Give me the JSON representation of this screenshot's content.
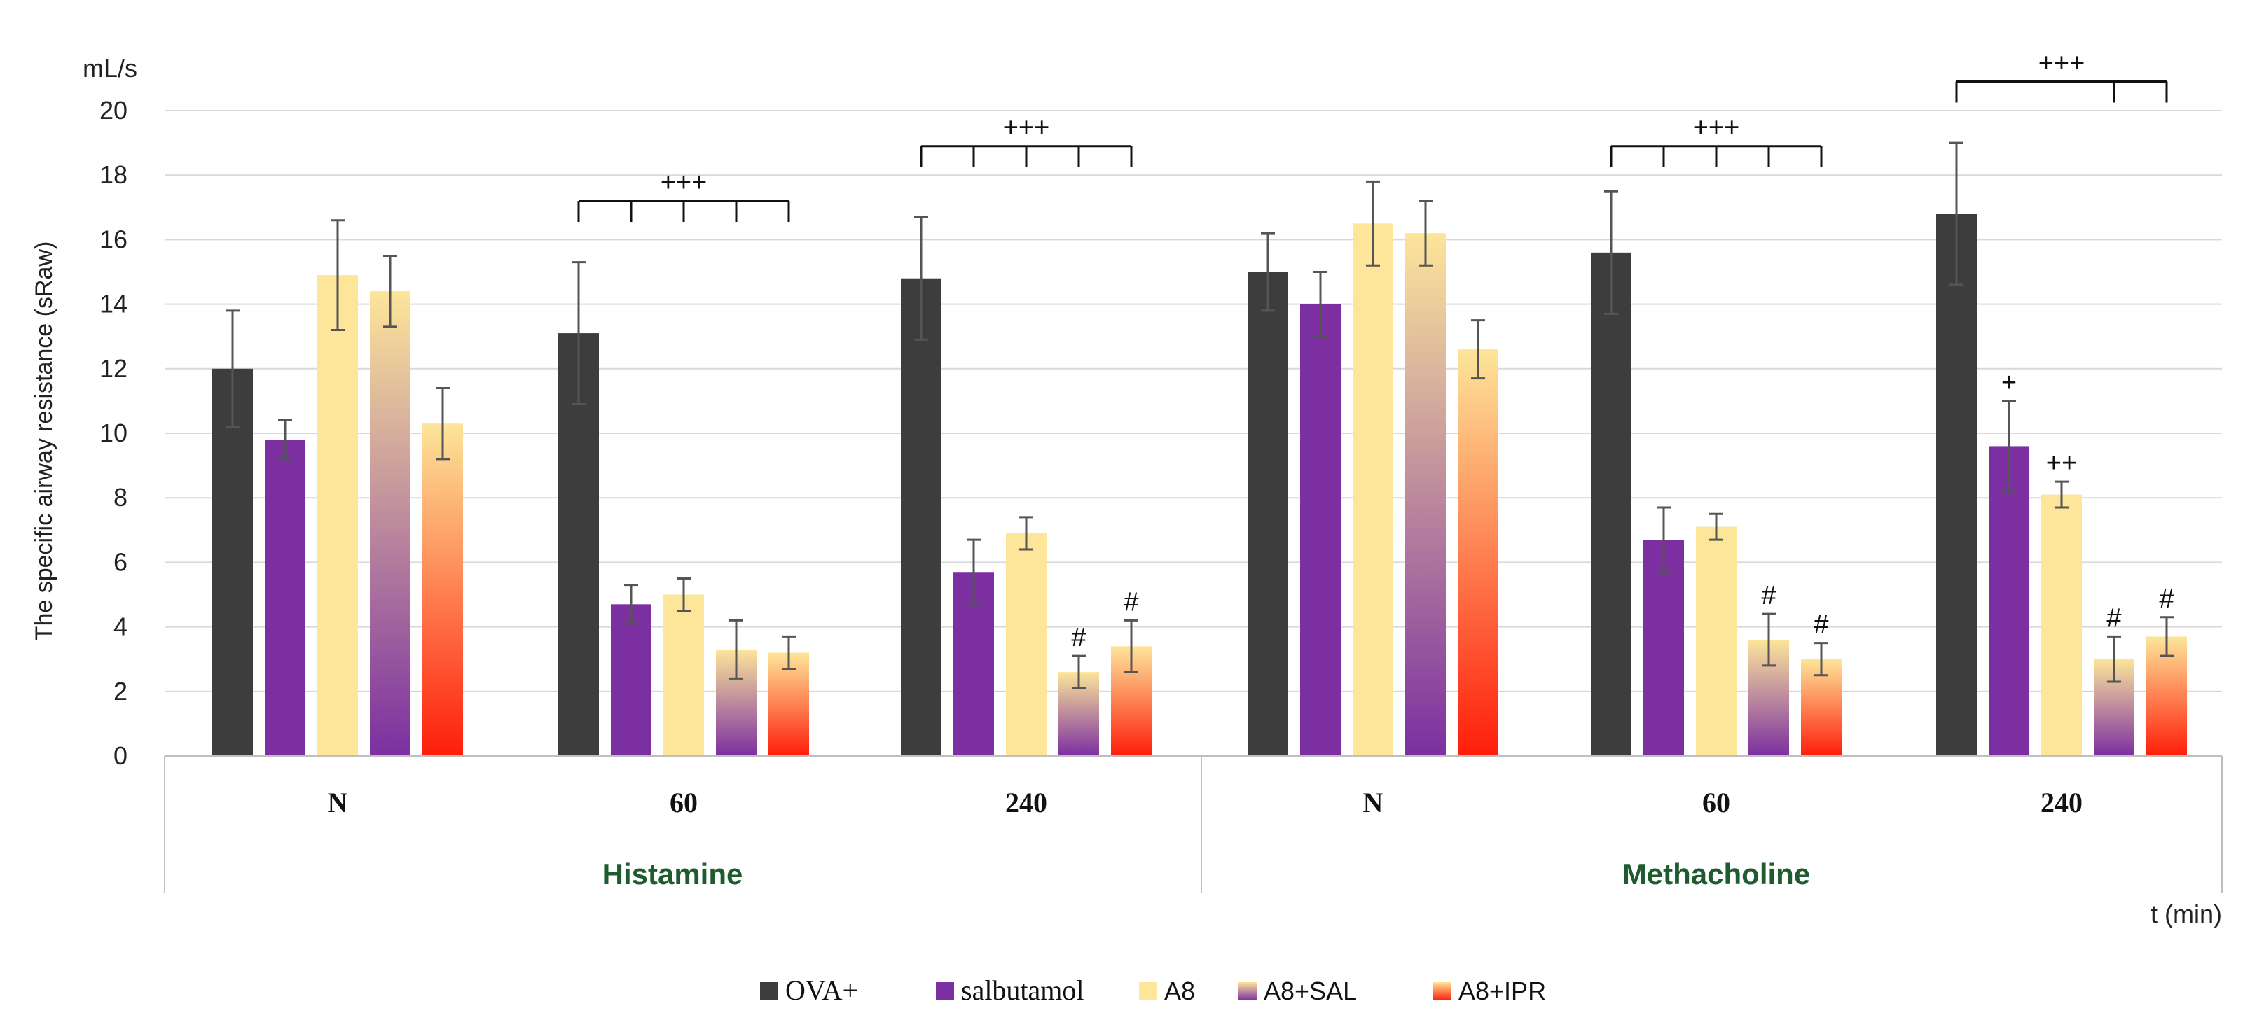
{
  "chart_data": {
    "type": "bar",
    "unit": "mL/s",
    "ylabel": "The specific airway resistance (sRaw)",
    "xlabel": "t (min)",
    "ylim": [
      0,
      20
    ],
    "yticks": [
      0,
      2,
      4,
      6,
      8,
      10,
      12,
      14,
      16,
      18,
      20
    ],
    "grid": true,
    "legend_position": "bottom",
    "groups": [
      {
        "label": "Histamine",
        "categories": [
          "N",
          "60",
          "240"
        ]
      },
      {
        "label": "Methacholine",
        "categories": [
          "N",
          "60",
          "240"
        ]
      }
    ],
    "categories": [
      "N",
      "60",
      "240",
      "N",
      "60",
      "240"
    ],
    "series": [
      {
        "name": "OVA+",
        "color": "#3d3d3d",
        "values": [
          12.0,
          13.1,
          14.8,
          15.0,
          15.6,
          16.8
        ],
        "errors": [
          1.8,
          2.2,
          1.9,
          1.2,
          1.9,
          2.2
        ]
      },
      {
        "name": "salbutamol",
        "color": "#7b2fa0",
        "values": [
          9.8,
          4.7,
          5.7,
          14.0,
          6.7,
          9.6
        ],
        "errors": [
          0.6,
          0.6,
          1.0,
          1.0,
          1.0,
          1.4
        ]
      },
      {
        "name": "A8",
        "color": "#fde59a",
        "values": [
          14.9,
          5.0,
          6.9,
          16.5,
          7.1,
          8.1
        ],
        "errors": [
          1.7,
          0.5,
          0.5,
          1.3,
          0.4,
          0.4
        ]
      },
      {
        "name": "A8+SAL",
        "colors": [
          "#fde59a",
          "#7b2fa0"
        ],
        "values": [
          14.4,
          3.3,
          2.6,
          16.2,
          3.6,
          3.0
        ],
        "errors": [
          1.1,
          0.9,
          0.5,
          1.0,
          0.8,
          0.7
        ]
      },
      {
        "name": "A8+IPR",
        "colors": [
          "#fde59a",
          "#fe1e0a"
        ],
        "values": [
          10.3,
          3.2,
          3.4,
          12.6,
          3.0,
          3.7
        ],
        "errors": [
          1.1,
          0.5,
          0.8,
          0.9,
          0.5,
          0.6
        ]
      }
    ],
    "point_annotations": [
      {
        "text": "+",
        "category_index": 5,
        "series_index": 1
      },
      {
        "text": "++",
        "category_index": 5,
        "series_index": 2
      },
      {
        "text": "#",
        "category_index": 2,
        "series_index": 3
      },
      {
        "text": "#",
        "category_index": 2,
        "series_index": 4
      },
      {
        "text": "#",
        "category_index": 4,
        "series_index": 3
      },
      {
        "text": "#",
        "category_index": 4,
        "series_index": 4
      },
      {
        "text": "#",
        "category_index": 5,
        "series_index": 3
      },
      {
        "text": "#",
        "category_index": 5,
        "series_index": 4
      }
    ],
    "brackets": [
      {
        "text": "+++",
        "category_index": 1,
        "level": 17.2,
        "from_series": 0,
        "ticks": [
          1,
          2,
          3,
          4
        ]
      },
      {
        "text": "+++",
        "category_index": 2,
        "level": 18.9,
        "from_series": 0,
        "ticks": [
          1,
          2,
          3,
          4
        ]
      },
      {
        "text": "+++",
        "category_index": 4,
        "level": 18.9,
        "from_series": 0,
        "ticks": [
          1,
          2,
          3,
          4
        ]
      },
      {
        "text": "+++",
        "category_index": 5,
        "level": 20.9,
        "from_series": 0,
        "ticks": [
          3,
          4
        ]
      }
    ]
  }
}
